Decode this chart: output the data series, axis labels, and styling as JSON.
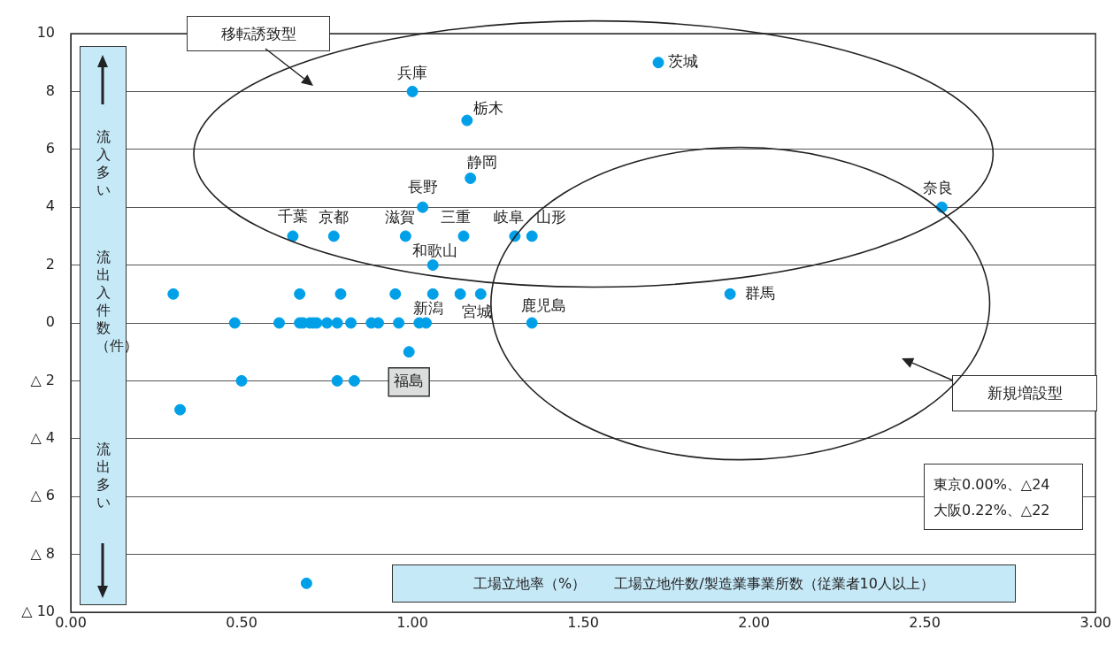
{
  "chart_data": {
    "type": "scatter",
    "xlabel": "工場立地率（%）　　工場立地件数/製造業事業所数（従業者10人以上）",
    "ylabel": "流出入件数（件）",
    "series": [
      {
        "color": "#00a0e9",
        "x": [
          1.0,
          1.16,
          1.17,
          1.03,
          0.65,
          0.77,
          0.98,
          1.15,
          1.3,
          1.35,
          1.06,
          1.72,
          2.55,
          1.93,
          1.04,
          1.2,
          1.35,
          0.99,
          0.3,
          0.67,
          0.79,
          0.95,
          1.06,
          1.14,
          0.48,
          0.61,
          0.67,
          0.68,
          0.7,
          0.71,
          0.72,
          0.75,
          0.78,
          0.82,
          0.88,
          0.9,
          0.96,
          1.02,
          0.5,
          0.78,
          0.83,
          0.32,
          0.69
        ],
        "values": [
          8,
          7,
          5,
          4,
          3,
          3,
          3,
          3,
          3,
          3,
          2,
          9,
          4,
          1,
          0,
          1,
          0,
          -1,
          1,
          1,
          1,
          1,
          1,
          1,
          0,
          0,
          0,
          0,
          0,
          0,
          0,
          0,
          0,
          0,
          0,
          0,
          0,
          0,
          -2,
          -2,
          -2,
          -3,
          -9
        ]
      }
    ],
    "xlim": [
      0,
      3
    ],
    "xticks": [
      {
        "value": 0,
        "label": "0.00"
      },
      {
        "value": 0.5,
        "label": "0.50"
      },
      {
        "value": 1,
        "label": "1.00"
      },
      {
        "value": 1.5,
        "label": "1.50"
      },
      {
        "value": 2,
        "label": "2.00"
      },
      {
        "value": 2.5,
        "label": "2.50"
      },
      {
        "value": 3,
        "label": "3.00"
      }
    ],
    "ylim": [
      -10,
      10
    ],
    "yticks": [
      10,
      8,
      6,
      4,
      2,
      0,
      {
        "value": -2,
        "label": "△ 2"
      },
      {
        "value": -4,
        "label": "△ 4"
      },
      {
        "value": -6,
        "label": "△ 6"
      },
      {
        "value": -8,
        "label": "△ 8"
      },
      {
        "value": -10,
        "label": "△ 10"
      }
    ],
    "grid": "y",
    "legend": false,
    "marker": "circle",
    "annotations": [
      {
        "text": "兵庫",
        "x": 1.0,
        "y": 8
      },
      {
        "text": "栃木",
        "x": 1.16,
        "y": 7
      },
      {
        "text": "静岡",
        "x": 1.17,
        "y": 5
      },
      {
        "text": "長野",
        "x": 1.03,
        "y": 4
      },
      {
        "text": "千葉",
        "x": 0.65,
        "y": 3
      },
      {
        "text": "京都",
        "x": 0.77,
        "y": 3
      },
      {
        "text": "滋賀",
        "x": 0.98,
        "y": 3
      },
      {
        "text": "三重",
        "x": 1.15,
        "y": 3
      },
      {
        "text": "岐阜",
        "x": 1.3,
        "y": 3
      },
      {
        "text": "山形",
        "x": 1.35,
        "y": 3
      },
      {
        "text": "和歌山",
        "x": 1.06,
        "y": 2
      },
      {
        "text": "茨城",
        "x": 1.72,
        "y": 9
      },
      {
        "text": "奈良",
        "x": 2.55,
        "y": 4
      },
      {
        "text": "群馬",
        "x": 1.93,
        "y": 1
      },
      {
        "text": "新潟",
        "x": 1.04,
        "y": 0
      },
      {
        "text": "宮城",
        "x": 1.2,
        "y": 1
      },
      {
        "text": "鹿児島",
        "x": 1.35,
        "y": 0
      },
      {
        "text": "福島",
        "x": 0.99,
        "y": -1
      },
      "移転誘致型",
      "新規増設型",
      "東京0.00%、△24",
      "大阪0.22%、△22",
      "流入多い",
      "流出多い"
    ]
  }
}
